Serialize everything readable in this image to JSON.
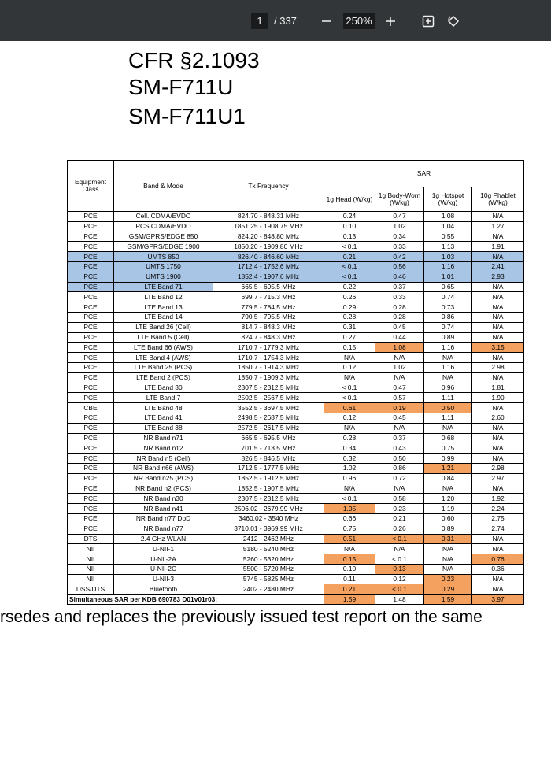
{
  "toolbar": {
    "page": "1",
    "page_count": "/ 337",
    "zoom": "250%"
  },
  "document": {
    "headings": [
      "CFR §2.1093",
      "SM-F711U",
      "SM-F711U1"
    ],
    "table": {
      "headers": {
        "equipment_class": "Equipment Class",
        "band_mode": "Band & Mode",
        "tx_frequency": "Tx Frequency",
        "sar": "SAR",
        "sar_columns": [
          "1g Head (W/kg)",
          "1g Body-Worn (W/kg)",
          "1g Hotspot (W/kg)",
          "10g Phablet (W/kg)"
        ]
      },
      "rows": [
        [
          "PCE",
          "Cell. CDMA/EVDO",
          "824.70 - 848.31 MHz",
          "0.24",
          "0.47",
          "1.08",
          "N/A"
        ],
        [
          "PCE",
          "PCS CDMA/EVDO",
          "1851.25 - 1908.75 MHz",
          "0.10",
          "1.02",
          "1.04",
          "1.27"
        ],
        [
          "PCE",
          "GSM/GPRS/EDGE 850",
          "824.20 - 848.80 MHz",
          "0.13",
          "0.34",
          "0.55",
          "N/A"
        ],
        [
          "PCE",
          "GSM/GPRS/EDGE 1900",
          "1850.20 - 1909.80 MHz",
          "< 0.1",
          "0.33",
          "1.13",
          "1.91"
        ],
        [
          "PCE",
          "UMTS 850",
          "826.40 - 846.60 MHz",
          "0.21",
          "0.42",
          "1.03",
          "N/A"
        ],
        [
          "PCE",
          "UMTS 1750",
          "1712.4 - 1752.6 MHz",
          "< 0.1",
          "0.56",
          "1.16",
          "2.41"
        ],
        [
          "PCE",
          "UMTS 1900",
          "1852.4 - 1907.6 MHz",
          "< 0.1",
          "0.46",
          "1.01",
          "2.93"
        ],
        [
          "PCE",
          "LTE Band 71",
          "665.5 - 695.5 MHz",
          "0.22",
          "0.37",
          "0.65",
          "N/A"
        ],
        [
          "PCE",
          "LTE Band 12",
          "699.7 - 715.3 MHz",
          "0.26",
          "0.33",
          "0.74",
          "N/A"
        ],
        [
          "PCE",
          "LTE Band 13",
          "779.5 - 784.5 MHz",
          "0.29",
          "0.28",
          "0.73",
          "N/A"
        ],
        [
          "PCE",
          "LTE Band 14",
          "790.5 - 795.5 MHz",
          "0.28",
          "0.28",
          "0.86",
          "N/A"
        ],
        [
          "PCE",
          "LTE Band 26 (Cell)",
          "814.7 - 848.3 MHz",
          "0.31",
          "0.45",
          "0.74",
          "N/A"
        ],
        [
          "PCE",
          "LTE Band 5 (Cell)",
          "824.7 - 848.3 MHz",
          "0.27",
          "0.44",
          "0.89",
          "N/A"
        ],
        [
          "PCE",
          "LTE Band 66 (AWS)",
          "1710.7 - 1779.3 MHz",
          "0.15",
          "1.08",
          "1.16",
          "3.15"
        ],
        [
          "PCE",
          "LTE Band 4 (AWS)",
          "1710.7 - 1754.3 MHz",
          "N/A",
          "N/A",
          "N/A",
          "N/A"
        ],
        [
          "PCE",
          "LTE Band 25 (PCS)",
          "1850.7 - 1914.3 MHz",
          "0.12",
          "1.02",
          "1.16",
          "2.98"
        ],
        [
          "PCE",
          "LTE Band 2 (PCS)",
          "1850.7 - 1909.3 MHz",
          "N/A",
          "N/A",
          "N/A",
          "N/A"
        ],
        [
          "PCE",
          "LTE Band 30",
          "2307.5 - 2312.5 MHz",
          "< 0.1",
          "0.47",
          "0.96",
          "1.81"
        ],
        [
          "PCE",
          "LTE Band 7",
          "2502.5 - 2567.5 MHz",
          "< 0.1",
          "0.57",
          "1.11",
          "1.90"
        ],
        [
          "CBE",
          "LTE Band 48",
          "3552.5 - 3697.5 MHz",
          "0.61",
          "0.19",
          "0.50",
          "N/A"
        ],
        [
          "PCE",
          "LTE Band 41",
          "2498.5 - 2687.5 MHz",
          "0.12",
          "0.45",
          "1.11",
          "2.60"
        ],
        [
          "PCE",
          "LTE Band 38",
          "2572.5 - 2617.5 MHz",
          "N/A",
          "N/A",
          "N/A",
          "N/A"
        ],
        [
          "PCE",
          "NR Band n71",
          "665.5 - 695.5 MHz",
          "0.28",
          "0.37",
          "0.68",
          "N/A"
        ],
        [
          "PCE",
          "NR Band n12",
          "701.5 - 713.5 MHz",
          "0.34",
          "0.43",
          "0.75",
          "N/A"
        ],
        [
          "PCE",
          "NR Band n5 (Cell)",
          "826.5 - 846.5 MHz",
          "0.32",
          "0.50",
          "0.99",
          "N/A"
        ],
        [
          "PCE",
          "NR Band n66 (AWS)",
          "1712.5 - 1777.5 MHz",
          "1.02",
          "0.86",
          "1.21",
          "2.98"
        ],
        [
          "PCE",
          "NR Band n25 (PCS)",
          "1852.5 - 1912.5 MHz",
          "0.96",
          "0.72",
          "0.84",
          "2.97"
        ],
        [
          "PCE",
          "NR Band n2 (PCS)",
          "1852.5 - 1907.5 MHz",
          "N/A",
          "N/A",
          "N/A",
          "N/A"
        ],
        [
          "PCE",
          "NR Band n30",
          "2307.5 - 2312.5 MHz",
          "< 0.1",
          "0.58",
          "1.20",
          "1.92"
        ],
        [
          "PCE",
          "NR Band n41",
          "2506.02 - 2679.99 MHz",
          "1.05",
          "0.23",
          "1.19",
          "2.24"
        ],
        [
          "PCE",
          "NR Band n77 DoD",
          "3460.02 - 3540 MHz",
          "0.66",
          "0.21",
          "0.60",
          "2.75"
        ],
        [
          "PCE",
          "NR Band n77",
          "3710.01 - 3969.99 MHz",
          "0.75",
          "0.26",
          "0.89",
          "2.74"
        ],
        [
          "DTS",
          "2.4 GHz WLAN",
          "2412 - 2462 MHz",
          "0.51",
          "< 0.1",
          "0.31",
          "N/A"
        ],
        [
          "NII",
          "U-NII-1",
          "5180 - 5240 MHz",
          "N/A",
          "N/A",
          "N/A",
          "N/A"
        ],
        [
          "NII",
          "U-NII-2A",
          "5260 - 5320 MHz",
          "0.15",
          "< 0.1",
          "N/A",
          "0.76"
        ],
        [
          "NII",
          "U-NII-2C",
          "5500 - 5720 MHz",
          "0.10",
          "0.13",
          "N/A",
          "0.36"
        ],
        [
          "NII",
          "U-NII-3",
          "5745 - 5825 MHz",
          "0.11",
          "0.12",
          "0.23",
          "N/A"
        ],
        [
          "DSS/DTS",
          "Bluetooth",
          "2402 - 2480 MHz",
          "0.21",
          "< 0.1",
          "0.29",
          "N/A"
        ]
      ],
      "footer": {
        "label": "Simultaneous SAR per KDB 690783 D01v01r03:",
        "values": [
          "1.59",
          "1.48",
          "1.59",
          "3.97"
        ]
      }
    },
    "trailing_text": "rsedes and replaces the previously issued test report on the same"
  }
}
